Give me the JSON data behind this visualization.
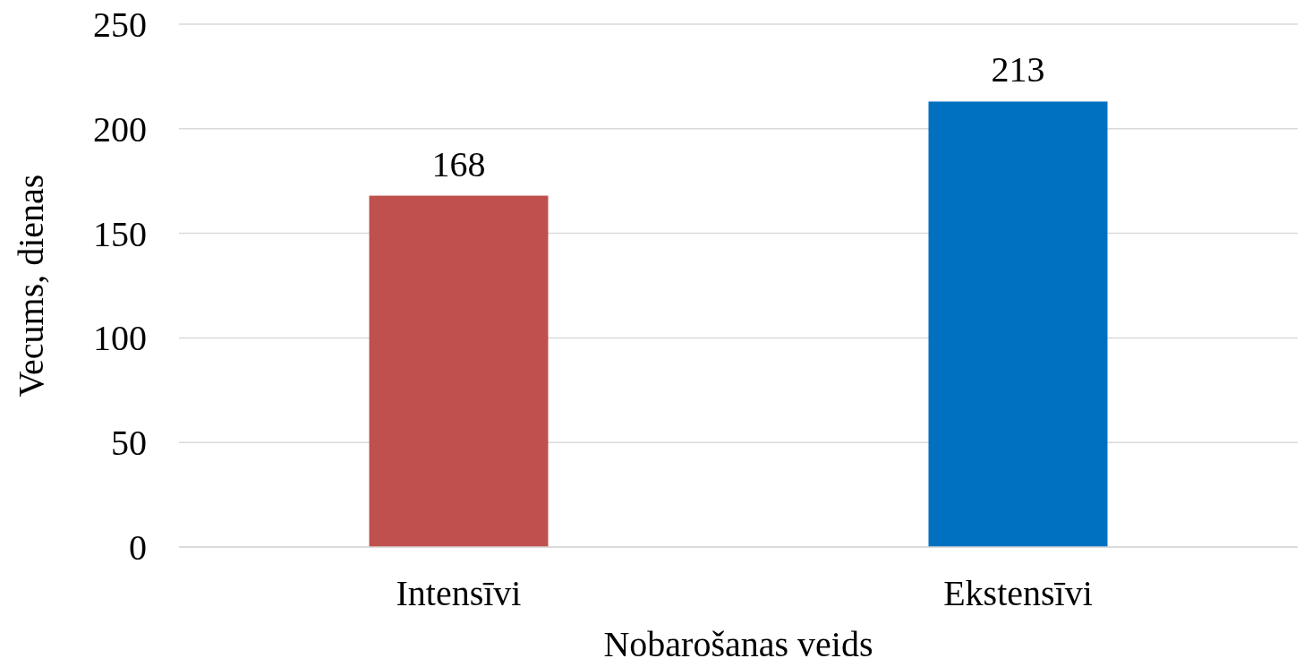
{
  "chart_data": {
    "type": "bar",
    "xlabel": "Nobarošanas veids",
    "ylabel": "Vecums, dienas",
    "categories": [
      "Intensīvi",
      "Ekstensīvi"
    ],
    "values": [
      168,
      213
    ],
    "colors": [
      "#c0504d",
      "#0070c0"
    ],
    "ylim": [
      0,
      250
    ],
    "yticks": [
      0,
      50,
      100,
      150,
      200,
      250
    ],
    "grid": "y",
    "data_labels": true
  }
}
